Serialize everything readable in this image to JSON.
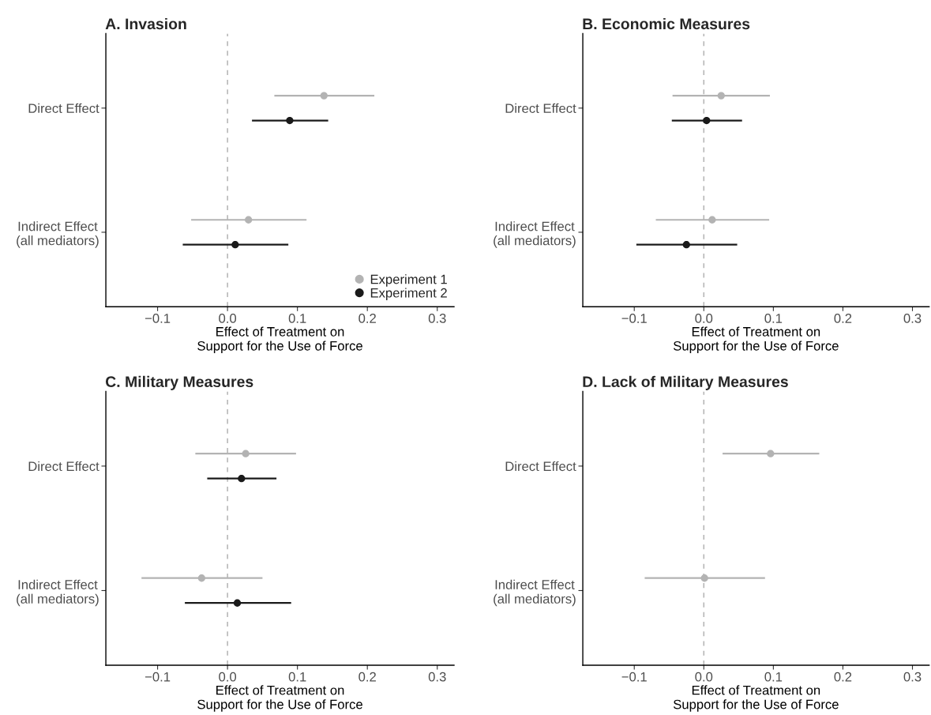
{
  "chart_data": [
    {
      "type": "scatter",
      "title": "A. Invasion",
      "xlabel": "Effect of Treatment on\nSupport for the Use of Force",
      "orientation": "horizontal",
      "categories": [
        "Direct Effect",
        "Indirect Effect\n(all mediators)"
      ],
      "marker": "circle",
      "legend": "bottom right",
      "series": [
        {
          "name": "Experiment 1",
          "color": "#b3b3b3",
          "values": [
            0.138,
            0.03
          ],
          "errors": [
            [
              0.067,
              0.21
            ],
            [
              -0.052,
              0.113
            ]
          ]
        },
        {
          "name": "Experiment 2",
          "color": "#1a1a1a",
          "values": [
            0.089,
            0.011
          ],
          "errors": [
            [
              0.035,
              0.144
            ],
            [
              -0.064,
              0.087
            ]
          ]
        }
      ],
      "xlim": [
        -0.174,
        0.324
      ],
      "xticks": [
        {
          "value": -0.1,
          "label": "−0.1"
        },
        {
          "value": 0.0,
          "label": "0.0"
        },
        {
          "value": 0.1,
          "label": "0.1"
        },
        {
          "value": 0.2,
          "label": "0.2"
        },
        {
          "value": 0.3,
          "label": "0.3"
        }
      ],
      "ref_lines": [
        {
          "axis": "x",
          "value": 0,
          "color": "#b3b3b3",
          "line_style": "dashed"
        }
      ]
    },
    {
      "type": "scatter",
      "title": "B. Economic Measures",
      "xlabel": "Effect of Treatment on\nSupport for the Use of Force",
      "orientation": "horizontal",
      "categories": [
        "Direct Effect",
        "Indirect Effect\n(all mediators)"
      ],
      "marker": "circle",
      "series": [
        {
          "color": "#b3b3b3",
          "values": [
            0.025,
            0.012
          ],
          "errors": [
            [
              -0.045,
              0.095
            ],
            [
              -0.069,
              0.094
            ]
          ]
        },
        {
          "color": "#1a1a1a",
          "values": [
            0.004,
            -0.025
          ],
          "errors": [
            [
              -0.046,
              0.055
            ],
            [
              -0.097,
              0.048
            ]
          ]
        }
      ],
      "xlim": [
        -0.174,
        0.324
      ],
      "xticks": [
        {
          "value": -0.1,
          "label": "−0.1"
        },
        {
          "value": 0.0,
          "label": "0.0"
        },
        {
          "value": 0.1,
          "label": "0.1"
        },
        {
          "value": 0.2,
          "label": "0.2"
        },
        {
          "value": 0.3,
          "label": "0.3"
        }
      ],
      "ref_lines": [
        {
          "axis": "x",
          "value": 0,
          "color": "#b3b3b3",
          "line_style": "dashed"
        }
      ]
    },
    {
      "type": "scatter",
      "title": "C. Military Measures",
      "xlabel": "Effect of Treatment on\nSupport for the Use of Force",
      "orientation": "horizontal",
      "categories": [
        "Direct Effect",
        "Indirect Effect\n(all mediators)"
      ],
      "marker": "circle",
      "series": [
        {
          "color": "#b3b3b3",
          "values": [
            0.026,
            -0.037
          ],
          "errors": [
            [
              -0.046,
              0.098
            ],
            [
              -0.123,
              0.05
            ]
          ]
        },
        {
          "color": "#1a1a1a",
          "values": [
            0.02,
            0.014
          ],
          "errors": [
            [
              -0.029,
              0.07
            ],
            [
              -0.061,
              0.091
            ]
          ]
        }
      ],
      "xlim": [
        -0.174,
        0.324
      ],
      "xticks": [
        {
          "value": -0.1,
          "label": "−0.1"
        },
        {
          "value": 0.0,
          "label": "0.0"
        },
        {
          "value": 0.1,
          "label": "0.1"
        },
        {
          "value": 0.2,
          "label": "0.2"
        },
        {
          "value": 0.3,
          "label": "0.3"
        }
      ],
      "ref_lines": [
        {
          "axis": "x",
          "value": 0,
          "color": "#b3b3b3",
          "line_style": "dashed"
        }
      ]
    },
    {
      "type": "scatter",
      "title": "D. Lack of Military Measures",
      "xlabel": "Effect of Treatment on\nSupport for the Use of Force",
      "orientation": "horizontal",
      "categories": [
        "Direct Effect",
        "Indirect Effect\n(all mediators)"
      ],
      "marker": "circle",
      "series": [
        {
          "color": "#b3b3b3",
          "values": [
            0.096,
            0.001
          ],
          "errors": [
            [
              0.027,
              0.166
            ],
            [
              -0.085,
              0.088
            ]
          ]
        }
      ],
      "xlim": [
        -0.174,
        0.324
      ],
      "xticks": [
        {
          "value": -0.1,
          "label": "−0.1"
        },
        {
          "value": 0.0,
          "label": "0.0"
        },
        {
          "value": 0.1,
          "label": "0.1"
        },
        {
          "value": 0.2,
          "label": "0.2"
        },
        {
          "value": 0.3,
          "label": "0.3"
        }
      ],
      "ref_lines": [
        {
          "axis": "x",
          "value": 0,
          "color": "#b3b3b3",
          "line_style": "dashed"
        }
      ]
    }
  ]
}
